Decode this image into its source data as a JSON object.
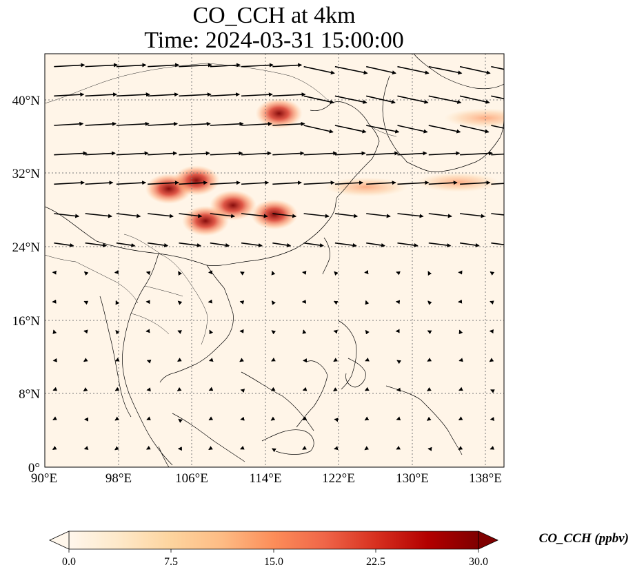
{
  "title_line1": "CO_CCH at 4km",
  "title_line2": "Time: 2024-03-31 15:00:00",
  "map": {
    "lon_range": [
      90,
      140
    ],
    "lat_range": [
      0,
      45
    ],
    "lon_ticks": [
      90,
      98,
      106,
      114,
      122,
      130,
      138
    ],
    "lon_tick_labels": [
      "90°E",
      "98°E",
      "106°E",
      "114°E",
      "122°E",
      "130°E",
      "138°E"
    ],
    "lat_ticks": [
      0,
      8,
      16,
      24,
      32,
      40
    ],
    "lat_tick_labels": [
      "0°",
      "8°N",
      "16°N",
      "24°N",
      "32°N",
      "40°N"
    ],
    "gridlines": true,
    "coastlines": true,
    "borders": true,
    "wind_vectors": true
  },
  "colorbar": {
    "label": "CO_CCH (ppbv)",
    "colormap": "OrRd",
    "min": 0.0,
    "max": 30.0,
    "extend": "both",
    "ticks": [
      0.0,
      7.5,
      15.0,
      22.5,
      30.0
    ],
    "tick_labels": [
      "0.0",
      "7.5",
      "15.0",
      "22.5",
      "30.0"
    ],
    "colors": [
      "#fff7ec",
      "#fee8c8",
      "#fdd49e",
      "#fdbb84",
      "#fc8d59",
      "#ef6548",
      "#d7301f",
      "#b30000",
      "#7f0000"
    ]
  },
  "plumes": [
    {
      "lon": 103.5,
      "lat": 30.3,
      "value": 30
    },
    {
      "lon": 106.5,
      "lat": 31.2,
      "value": 28
    },
    {
      "lon": 107.5,
      "lat": 26.8,
      "value": 25
    },
    {
      "lon": 110.5,
      "lat": 28.5,
      "value": 20
    },
    {
      "lon": 115,
      "lat": 27.5,
      "value": 24
    },
    {
      "lon": 115.5,
      "lat": 38.5,
      "value": 22
    },
    {
      "lon": 125,
      "lat": 30.5,
      "value": 8
    },
    {
      "lon": 135,
      "lat": 31,
      "value": 9
    },
    {
      "lon": 138,
      "lat": 38,
      "value": 8
    }
  ]
}
